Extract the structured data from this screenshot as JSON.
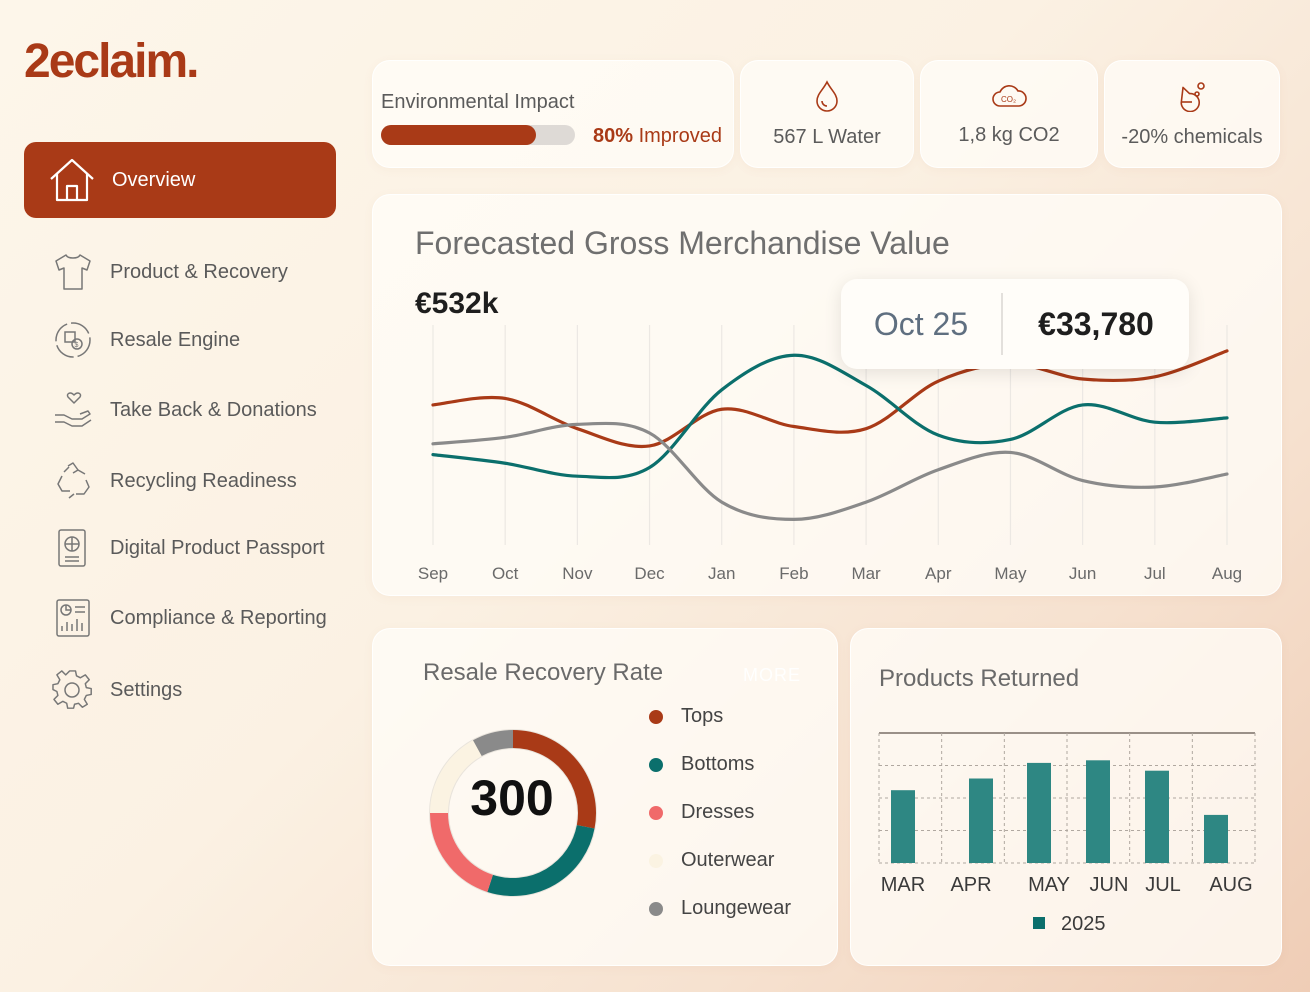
{
  "brand": {
    "name": "2eclaim."
  },
  "sidebar": {
    "items": [
      {
        "label": "Overview",
        "icon": "home-icon"
      },
      {
        "label": "Product & Recovery",
        "icon": "tshirt-icon"
      },
      {
        "label": "Resale Engine",
        "icon": "resale-cycle-icon"
      },
      {
        "label": "Take Back & Donations",
        "icon": "hand-heart-icon"
      },
      {
        "label": "Recycling Readiness",
        "icon": "recycle-icon"
      },
      {
        "label": "Digital Product Passport",
        "icon": "passport-icon"
      },
      {
        "label": "Compliance & Reporting",
        "icon": "report-icon"
      },
      {
        "label": "Settings",
        "icon": "gear-icon"
      }
    ]
  },
  "impact": {
    "label": "Environmental Impact",
    "progress": 0.8,
    "percent": "80%",
    "suffix": "Improved",
    "water": "567 L Water",
    "co2": "1,8 kg CO2",
    "chemicals": "-20% chemicals"
  },
  "colors": {
    "accent": "#a93a17",
    "teal": "#0b6f6c",
    "grey": "#8a8a8a",
    "pink": "#f06a6a",
    "cream": "#fbf3e2"
  },
  "gmv": {
    "title": "Forecasted Gross Merchandise Value",
    "total": "€532k",
    "tooltip_date": "Oct 25",
    "tooltip_value": "€33,780"
  },
  "resale": {
    "title": "Resale Recovery Rate",
    "more": "MORE",
    "total": "300"
  },
  "returned": {
    "title": "Products Returned",
    "legend": "2025"
  },
  "chart_data": [
    {
      "type": "line",
      "title": "Forecasted Gross Merchandise Value",
      "x": [
        "Sep",
        "Oct",
        "Nov",
        "Dec",
        "Jan",
        "Feb",
        "Mar",
        "Apr",
        "May",
        "Jun",
        "Jul",
        "Aug"
      ],
      "series": [
        {
          "color": "#a93a17",
          "values": [
            63,
            66,
            52,
            44,
            61,
            53,
            52,
            74,
            82,
            75,
            76,
            88
          ]
        },
        {
          "color": "#0b6f6c",
          "values": [
            40,
            36,
            30,
            34,
            70,
            86,
            72,
            49,
            47,
            63,
            55,
            57
          ]
        },
        {
          "color": "#8a8a8a",
          "values": [
            45,
            48,
            54,
            50,
            18,
            10,
            18,
            33,
            41,
            28,
            25,
            31
          ]
        }
      ],
      "ylim": [
        0,
        100
      ],
      "grid": true
    },
    {
      "type": "pie",
      "title": "Resale Recovery Rate",
      "categories": [
        "Tops",
        "Bottoms",
        "Dresses",
        "Outerwear",
        "Loungewear"
      ],
      "values": [
        28,
        27,
        20,
        17,
        8
      ],
      "colors": [
        "#a93a17",
        "#0b6f6c",
        "#f06a6a",
        "#fbf3e2",
        "#8a8a8a"
      ]
    },
    {
      "type": "bar",
      "title": "Products Returned",
      "categories": [
        "MAR",
        "APR",
        "MAY",
        "JUN",
        "JUL",
        "AUG"
      ],
      "series": [
        {
          "name": "2025",
          "values": [
            56,
            65,
            77,
            79,
            71,
            37
          ]
        }
      ],
      "ylim": [
        0,
        100
      ],
      "grid": true
    }
  ]
}
